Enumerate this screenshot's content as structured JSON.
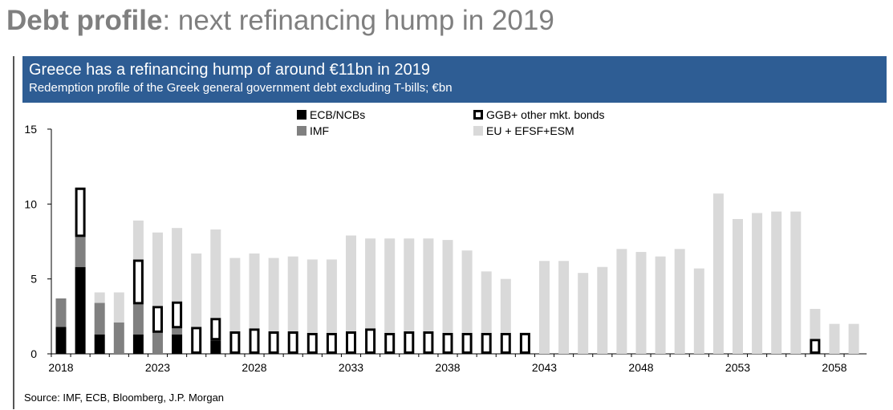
{
  "header": {
    "title_bold": "Debt profile",
    "title_rest": ": next refinancing hump in 2019"
  },
  "banner": {
    "title": "Greece has a refinancing hump of around €11bn in 2019",
    "subtitle": "Redemption profile of the Greek general government debt excluding T-bills; €bn"
  },
  "source": "Source: IMF, ECB, Bloomberg, J.P. Morgan",
  "colors": {
    "banner": "#2e5d94",
    "ecb": "#000000",
    "imf": "#808080",
    "ggb_fill": "#ffffff",
    "ggb_border": "#000000",
    "eu": "#d9d9d9",
    "axis": "#000000"
  },
  "chart_data": {
    "type": "bar",
    "stacked": true,
    "title": "Greece has a refinancing hump of around €11bn in 2019",
    "subtitle": "Redemption profile of the Greek general government debt excluding T-bills; €bn",
    "xlabel": "",
    "ylabel": "",
    "ylim": [
      0,
      15
    ],
    "yticks": [
      0,
      5,
      10,
      15
    ],
    "xticks": [
      "2018",
      "2023",
      "2028",
      "2033",
      "2038",
      "2043",
      "2048",
      "2053",
      "2058"
    ],
    "legend_position": "top-center",
    "categories": [
      2018,
      2019,
      2020,
      2021,
      2022,
      2023,
      2024,
      2025,
      2026,
      2027,
      2028,
      2029,
      2030,
      2031,
      2032,
      2033,
      2034,
      2035,
      2036,
      2037,
      2038,
      2039,
      2040,
      2041,
      2042,
      2043,
      2044,
      2045,
      2046,
      2047,
      2048,
      2049,
      2050,
      2051,
      2052,
      2053,
      2054,
      2055,
      2056,
      2057,
      2058,
      2059
    ],
    "series": [
      {
        "name": "ECB/NCBs",
        "values": [
          1.8,
          5.8,
          1.3,
          0,
          1.3,
          0,
          1.3,
          0,
          0.9,
          0,
          0,
          0,
          0,
          0,
          0,
          0,
          0,
          0,
          0,
          0,
          0,
          0,
          0,
          0,
          0,
          0,
          0,
          0,
          0,
          0,
          0,
          0,
          0,
          0,
          0,
          0,
          0,
          0,
          0,
          0,
          0,
          0
        ]
      },
      {
        "name": "IMF",
        "values": [
          1.9,
          2.0,
          2.1,
          2.1,
          2.0,
          1.4,
          0.4,
          0,
          0,
          0,
          0,
          0,
          0,
          0,
          0,
          0,
          0,
          0,
          0,
          0,
          0,
          0,
          0,
          0,
          0,
          0,
          0,
          0,
          0,
          0,
          0,
          0,
          0,
          0,
          0,
          0,
          0,
          0,
          0,
          0,
          0,
          0
        ]
      },
      {
        "name": "GGB+ other mkt. bonds",
        "values": [
          0,
          3.3,
          0,
          0,
          3.0,
          1.8,
          1.8,
          1.8,
          1.5,
          1.5,
          1.7,
          1.5,
          1.5,
          1.4,
          1.4,
          1.5,
          1.7,
          1.4,
          1.5,
          1.5,
          1.4,
          1.4,
          1.4,
          1.4,
          1.4,
          0,
          0,
          0,
          0,
          0,
          0,
          0,
          0,
          0,
          0,
          0,
          0,
          0,
          0,
          1.0,
          0,
          0
        ]
      },
      {
        "name": "EU + EFSF+ESM",
        "values": [
          0,
          0,
          0.7,
          2.0,
          2.6,
          4.9,
          4.9,
          4.9,
          5.9,
          4.9,
          5.0,
          4.9,
          5.0,
          4.9,
          4.9,
          6.4,
          6.0,
          6.3,
          6.2,
          6.2,
          6.2,
          5.5,
          4.1,
          3.6,
          0,
          6.2,
          6.2,
          5.4,
          5.8,
          7.0,
          6.8,
          6.5,
          7.0,
          5.7,
          10.7,
          9.0,
          9.4,
          9.5,
          9.5,
          2.0,
          2.0,
          2.0
        ]
      }
    ]
  }
}
